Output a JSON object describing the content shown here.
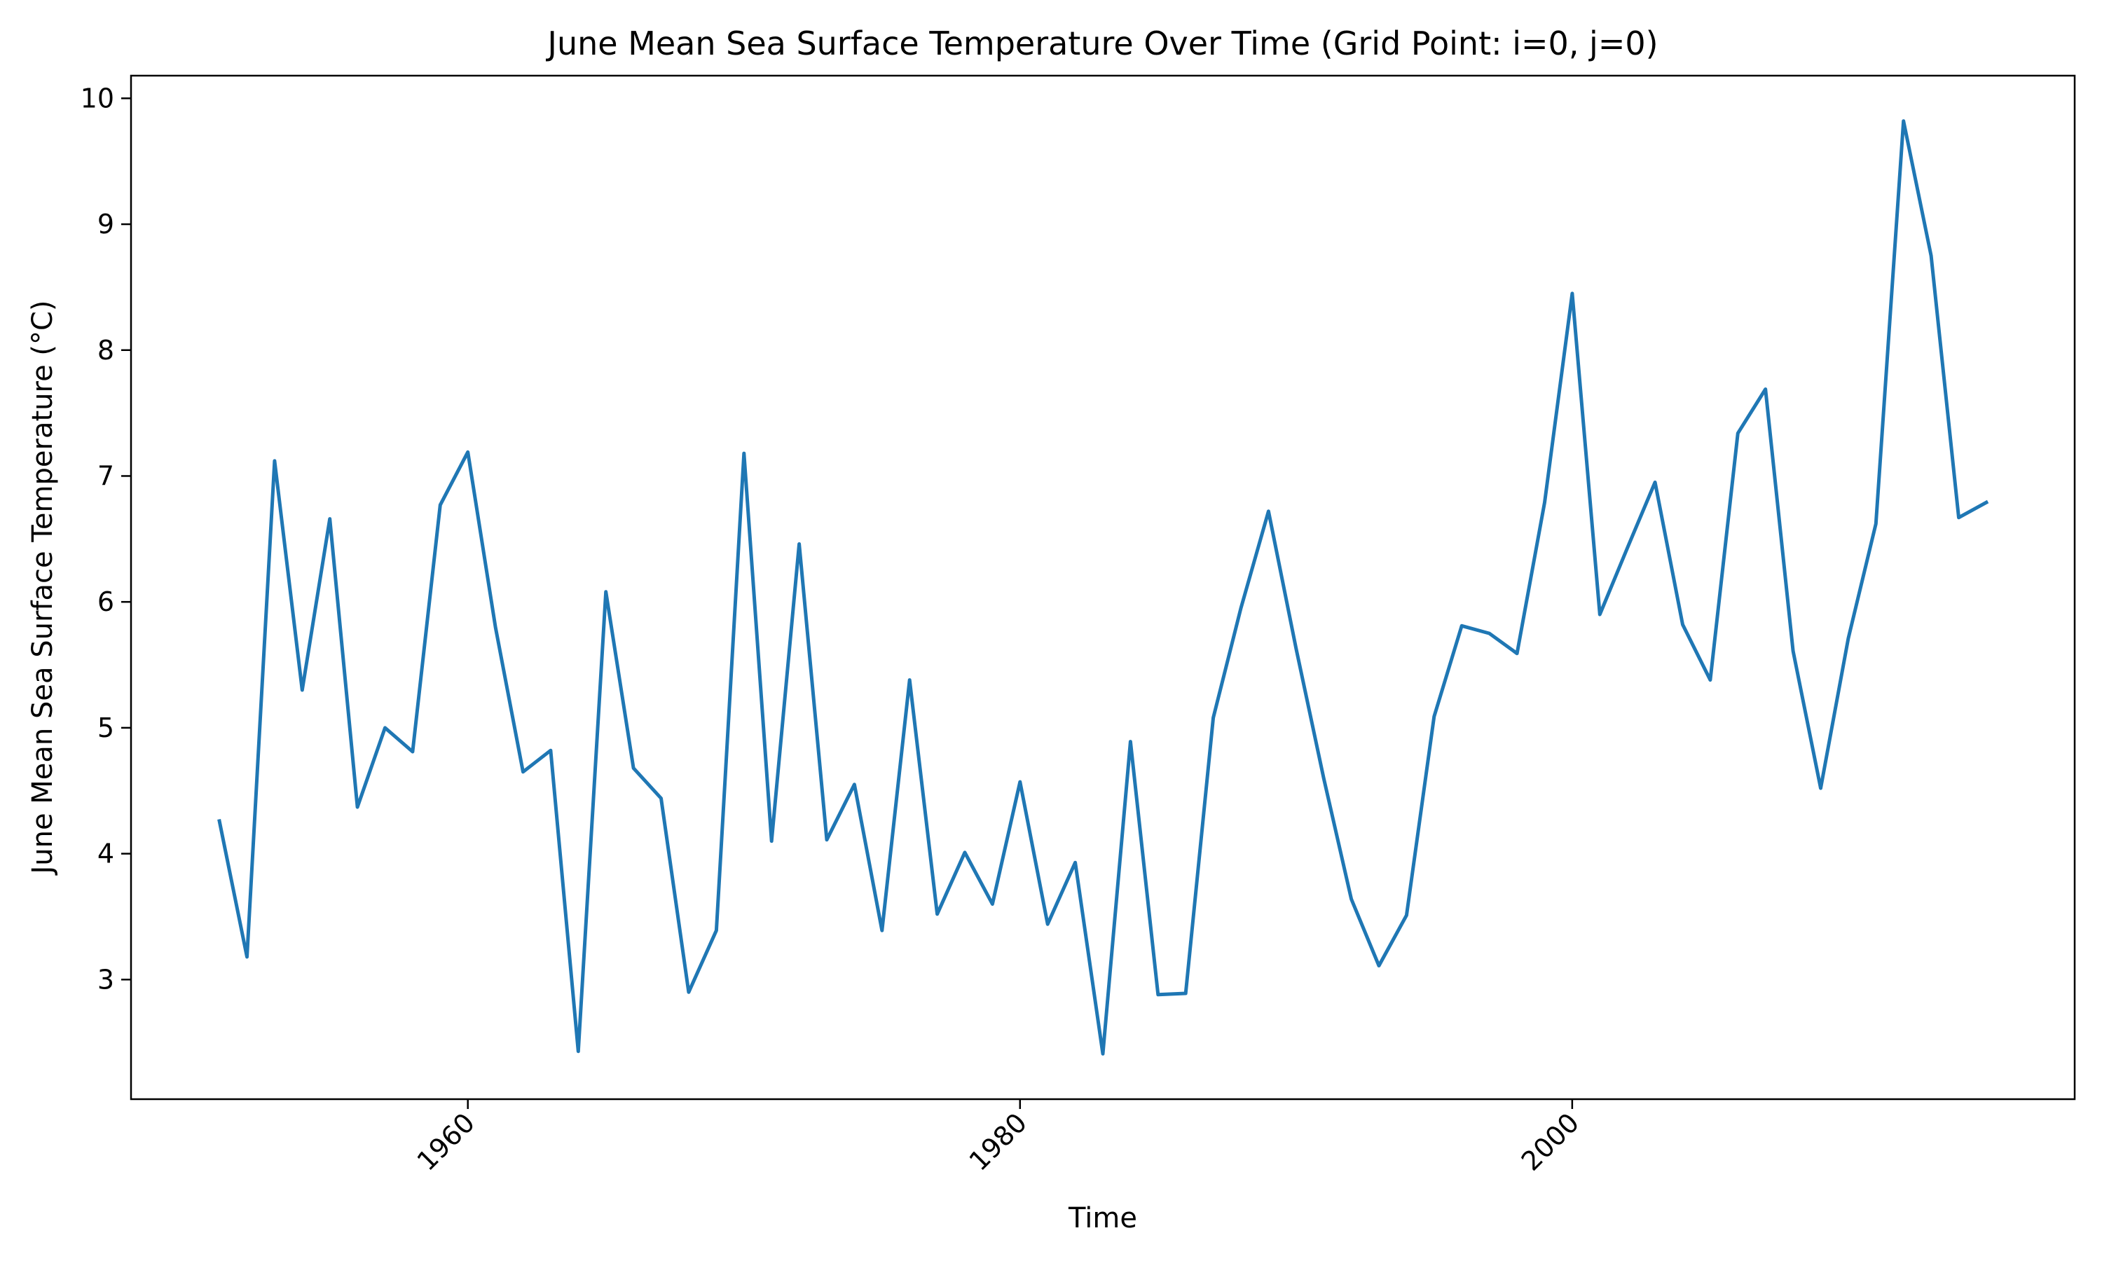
{
  "chart_data": {
    "type": "line",
    "title": "June Mean Sea Surface Temperature Over Time (Grid Point: i=0, j=0)",
    "xlabel": "Time",
    "ylabel": "June Mean Sea Surface Temperature (°C)",
    "xlim": [
      1947.8,
      2018.2
    ],
    "ylim": [
      2.05,
      10.18
    ],
    "xticks": [
      1960,
      1980,
      2000
    ],
    "xtick_labels": [
      "1960",
      "1980",
      "2000"
    ],
    "xtick_rotation_deg": 45,
    "yticks": [
      3,
      4,
      5,
      6,
      7,
      8,
      9,
      10
    ],
    "ytick_labels": [
      "3",
      "4",
      "5",
      "6",
      "7",
      "8",
      "9",
      "10"
    ],
    "grid": false,
    "legend": "none",
    "line_color": "#1f77b4",
    "series": [
      {
        "x": [
          1951,
          1952,
          1953,
          1954,
          1955,
          1956,
          1957,
          1958,
          1959,
          1960,
          1961,
          1962,
          1963,
          1964,
          1965,
          1966,
          1967,
          1968,
          1969,
          1970,
          1971,
          1972,
          1973,
          1974,
          1975,
          1976,
          1977,
          1978,
          1979,
          1980,
          1981,
          1982,
          1983,
          1984,
          1985,
          1986,
          1987,
          1988,
          1989,
          1990,
          1991,
          1992,
          1993,
          1994,
          1995,
          1996,
          1997,
          1998,
          1999,
          2000,
          2001,
          2002,
          2003,
          2004,
          2005,
          2006,
          2007,
          2008,
          2009,
          2010,
          2011,
          2012,
          2013,
          2014,
          2015
        ],
        "values": [
          4.26,
          3.18,
          7.12,
          5.3,
          6.66,
          4.37,
          5.0,
          4.81,
          6.77,
          7.19,
          5.8,
          4.65,
          4.82,
          2.43,
          6.08,
          4.68,
          4.44,
          2.9,
          3.39,
          7.18,
          4.1,
          6.46,
          4.11,
          4.55,
          3.39,
          5.38,
          3.52,
          4.01,
          3.6,
          4.57,
          3.44,
          3.93,
          2.41,
          4.89,
          2.88,
          2.89,
          5.08,
          5.95,
          6.72,
          5.63,
          4.6,
          3.64,
          3.11,
          3.51,
          5.09,
          5.81,
          5.75,
          5.59,
          6.79,
          8.45,
          5.9,
          6.43,
          6.95,
          5.82,
          5.38,
          7.34,
          7.69,
          5.61,
          4.52,
          5.71,
          6.62,
          9.82,
          8.75,
          6.67,
          6.79
        ]
      }
    ]
  }
}
